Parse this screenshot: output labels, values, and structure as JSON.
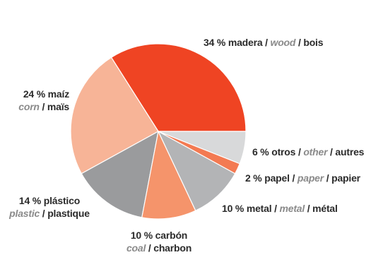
{
  "chart_data": {
    "type": "pie",
    "start_angle_deg": 0,
    "direction": "counterclockwise",
    "slices": [
      {
        "value": 34,
        "es": "madera",
        "en": "wood",
        "fr": "bois",
        "color": "#ef4423"
      },
      {
        "value": 24,
        "es": "maíz",
        "en": "corn",
        "fr": "maïs",
        "color": "#f7b497"
      },
      {
        "value": 14,
        "es": "plástico",
        "en": "plastic",
        "fr": "plastique",
        "color": "#9a9b9d"
      },
      {
        "value": 10,
        "es": "carbón",
        "en": "coal",
        "fr": "charbon",
        "color": "#f5946b"
      },
      {
        "value": 10,
        "es": "metal",
        "en": "metal",
        "fr": "métal",
        "color": "#b3b4b6"
      },
      {
        "value": 2,
        "es": "papel",
        "en": "paper",
        "fr": "papier",
        "color": "#f37a52"
      },
      {
        "value": 6,
        "es": "otros",
        "en": "other",
        "fr": "autres",
        "color": "#d8d9da"
      }
    ]
  },
  "labels": {
    "wood": {
      "pct": "34 %",
      "es": "madera",
      "en": "wood",
      "fr": "bois"
    },
    "corn": {
      "pct": "24 %",
      "es": "maíz",
      "en": "corn",
      "fr": "maïs"
    },
    "plastic": {
      "pct": "14 %",
      "es": "plástico",
      "en": "plastic",
      "fr": "plastique"
    },
    "coal": {
      "pct": "10 %",
      "es": "carbón",
      "en": "coal",
      "fr": "charbon"
    },
    "metal": {
      "pct": "10 %",
      "es": "metal",
      "en": "metal",
      "fr": "métal"
    },
    "paper": {
      "pct": "2 %",
      "es": "papel",
      "en": "paper",
      "fr": "papier"
    },
    "other": {
      "pct": "6 %",
      "es": "otros",
      "en": "other",
      "fr": "autres"
    }
  }
}
